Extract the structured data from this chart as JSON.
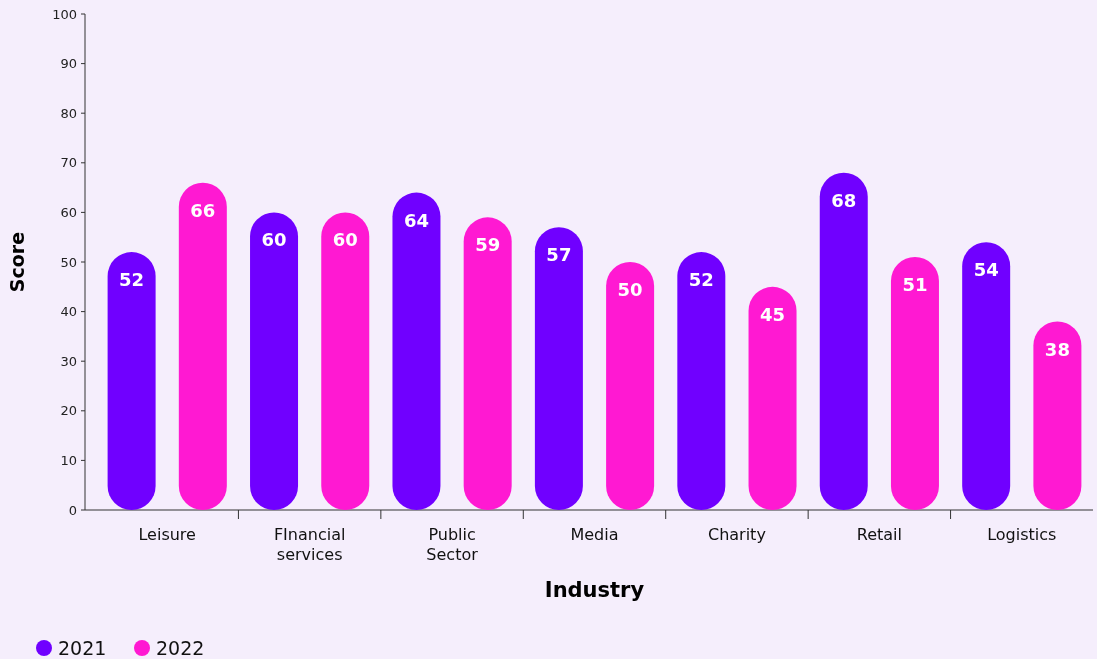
{
  "chart_data": {
    "type": "bar",
    "xlabel": "Industry",
    "ylabel": "Score",
    "categories": [
      "Leisure",
      "FInancial services",
      "Public Sector",
      "Media",
      "Charity",
      "Retail",
      "Logistics"
    ],
    "series": [
      {
        "name": "2021",
        "color": "#7000ff",
        "values": [
          52,
          60,
          64,
          57,
          52,
          68,
          54
        ]
      },
      {
        "name": "2022",
        "color": "#ff19d2",
        "values": [
          66,
          60,
          59,
          50,
          45,
          51,
          38
        ]
      }
    ],
    "ylim": [
      0,
      100
    ],
    "yticks": [
      0,
      10,
      20,
      30,
      40,
      50,
      60,
      70,
      80,
      90,
      100
    ],
    "data_labels": true,
    "legend": "bottom left",
    "grid": false
  }
}
